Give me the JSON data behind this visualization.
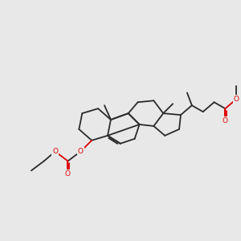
{
  "bg": "#e8e8e8",
  "bond_color": "#2a2a2a",
  "oxygen_color": "#dd0000",
  "lw": 1.3,
  "dpi": 100,
  "fig_w": 3.0,
  "fig_h": 3.0,
  "xlim": [
    -2.5,
    12.5
  ],
  "ylim": [
    1.0,
    10.5
  ]
}
